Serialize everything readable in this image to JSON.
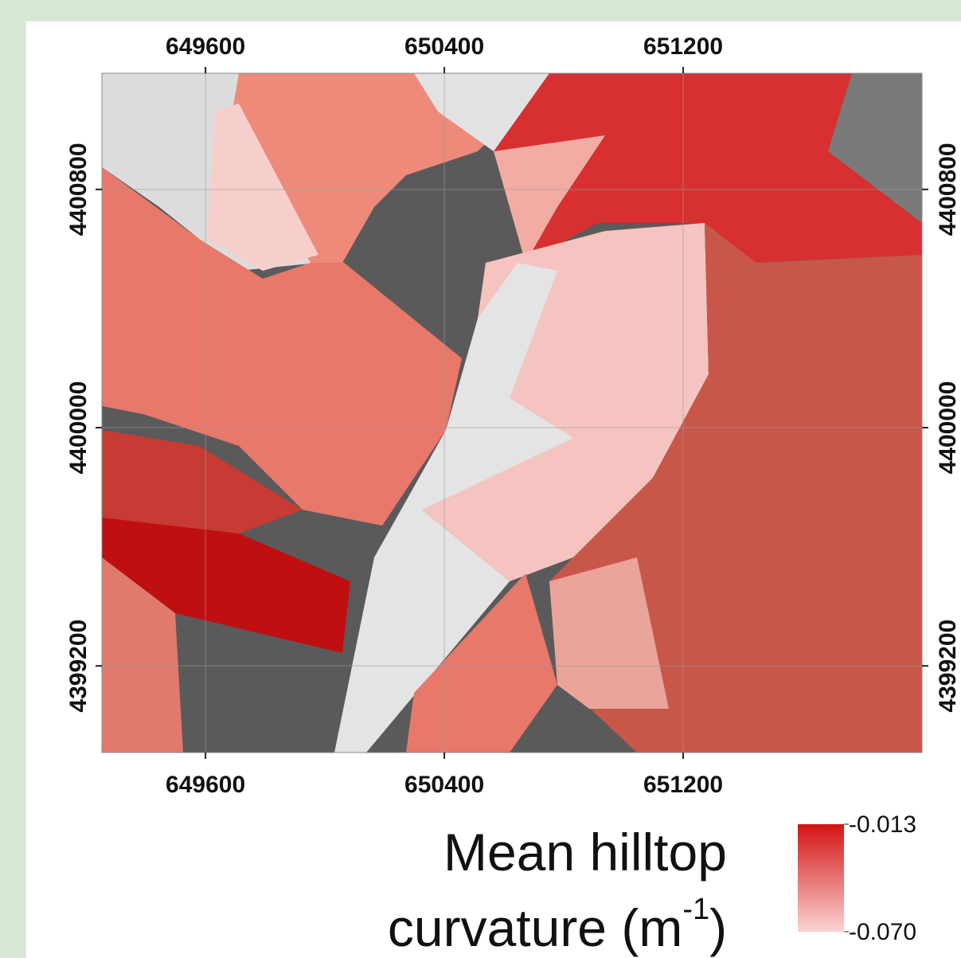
{
  "map": {
    "xlim": [
      649253,
      652000
    ],
    "ylim": [
      4398909,
      4401190
    ],
    "xticks": [
      649600,
      650400,
      651200
    ],
    "yticks": [
      4400800,
      4400000,
      4399200
    ],
    "grid": true,
    "legend": {
      "title_line1": "Mean hilltop",
      "title_line2": "curvature (m",
      "title_superscript": "-1",
      "title_close": ")",
      "ticks": [
        -0.013,
        {
          "value": -0.07,
          "label": "-0.070"
        }
      ],
      "color_high": "#d41414",
      "color_low": "#f9d4d2"
    }
  }
}
